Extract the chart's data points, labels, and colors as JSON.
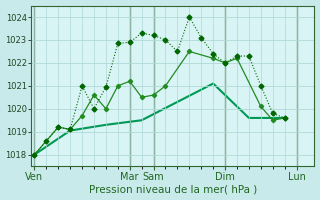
{
  "background_color": "#c8eaea",
  "plot_bg_color": "#d8f4f4",
  "grid_color": "#b0d8d8",
  "vline_color": "#336633",
  "xlabel": "Pression niveau de la mer( hPa )",
  "xlabel_color": "#226622",
  "xlabel_fontsize": 7.5,
  "ylim": [
    1017.5,
    1024.5
  ],
  "yticks": [
    1018,
    1019,
    1020,
    1021,
    1022,
    1023,
    1024
  ],
  "ytick_fontsize": 6,
  "ytick_color": "#224422",
  "x_day_labels": [
    "Ven",
    "Mar",
    "Sam",
    "Dim",
    "Lun"
  ],
  "x_day_positions": [
    0,
    8,
    10,
    16,
    22
  ],
  "xtick_fontsize": 7,
  "xtick_color": "#226622",
  "xlim": [
    -0.3,
    23.5
  ],
  "series1_color": "#006600",
  "series1_x": [
    0,
    1,
    2,
    3,
    4,
    5,
    6,
    7,
    8,
    9,
    10,
    11,
    12,
    13,
    14,
    15,
    16,
    17,
    18,
    19,
    20,
    21
  ],
  "series1_y": [
    1018.0,
    1018.6,
    1019.2,
    1019.1,
    1021.0,
    1020.0,
    1020.95,
    1022.85,
    1022.9,
    1023.3,
    1023.2,
    1023.0,
    1022.5,
    1024.0,
    1023.1,
    1022.4,
    1022.0,
    1022.3,
    1022.3,
    1021.0,
    1019.8,
    1019.6
  ],
  "series2_color": "#228B22",
  "series2_x": [
    0,
    2,
    3,
    4,
    5,
    6,
    7,
    8,
    9,
    10,
    11,
    13,
    15,
    16,
    17,
    19,
    20,
    21
  ],
  "series2_y": [
    1018.0,
    1019.2,
    1019.1,
    1019.7,
    1020.6,
    1020.0,
    1021.0,
    1021.2,
    1020.5,
    1020.6,
    1021.0,
    1022.5,
    1022.2,
    1022.0,
    1022.2,
    1020.1,
    1019.5,
    1019.6
  ],
  "series3_color": "#009955",
  "series3_x": [
    0,
    3,
    6,
    9,
    12,
    15,
    18,
    21
  ],
  "series3_y": [
    1018.0,
    1019.05,
    1019.3,
    1019.5,
    1020.3,
    1021.1,
    1019.6,
    1019.6
  ]
}
